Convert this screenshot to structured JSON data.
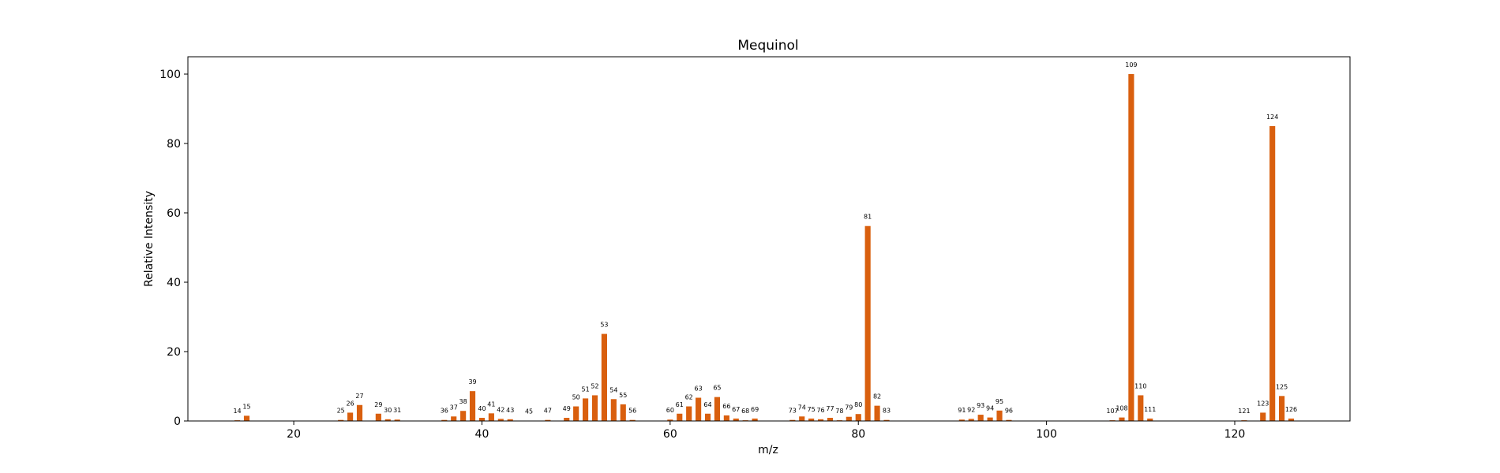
{
  "colors": {
    "bar": "#D95F0E",
    "axis": "#000000",
    "background": "#FFFFFF"
  },
  "chart_data": {
    "type": "bar",
    "title": "Mequinol",
    "xlabel": "m/z",
    "ylabel": "Relative Intensity",
    "xlim": [
      8.75,
      132.25
    ],
    "ylim": [
      0,
      105
    ],
    "xticks": [
      20,
      40,
      60,
      80,
      100,
      120
    ],
    "yticks": [
      0,
      20,
      40,
      60,
      80,
      100
    ],
    "grid": false,
    "peaks": [
      {
        "mz": 14,
        "intensity": 0.2
      },
      {
        "mz": 15,
        "intensity": 1.5
      },
      {
        "mz": 25,
        "intensity": 0.3
      },
      {
        "mz": 26,
        "intensity": 2.4
      },
      {
        "mz": 27,
        "intensity": 4.6
      },
      {
        "mz": 29,
        "intensity": 2.1
      },
      {
        "mz": 30,
        "intensity": 0.5
      },
      {
        "mz": 31,
        "intensity": 0.4
      },
      {
        "mz": 36,
        "intensity": 0.3
      },
      {
        "mz": 37,
        "intensity": 1.3
      },
      {
        "mz": 38,
        "intensity": 2.9
      },
      {
        "mz": 39,
        "intensity": 8.6
      },
      {
        "mz": 40,
        "intensity": 0.9
      },
      {
        "mz": 41,
        "intensity": 2.2
      },
      {
        "mz": 42,
        "intensity": 0.6
      },
      {
        "mz": 43,
        "intensity": 0.5
      },
      {
        "mz": 45,
        "intensity": 0.1
      },
      {
        "mz": 47,
        "intensity": 0.3
      },
      {
        "mz": 49,
        "intensity": 0.9
      },
      {
        "mz": 50,
        "intensity": 4.2
      },
      {
        "mz": 51,
        "intensity": 6.5
      },
      {
        "mz": 52,
        "intensity": 7.4
      },
      {
        "mz": 53,
        "intensity": 25.1
      },
      {
        "mz": 54,
        "intensity": 6.3
      },
      {
        "mz": 55,
        "intensity": 4.8
      },
      {
        "mz": 56,
        "intensity": 0.3
      },
      {
        "mz": 60,
        "intensity": 0.4
      },
      {
        "mz": 61,
        "intensity": 2.1
      },
      {
        "mz": 62,
        "intensity": 4.2
      },
      {
        "mz": 63,
        "intensity": 6.7
      },
      {
        "mz": 64,
        "intensity": 2.1
      },
      {
        "mz": 65,
        "intensity": 6.9
      },
      {
        "mz": 66,
        "intensity": 1.6
      },
      {
        "mz": 67,
        "intensity": 0.7
      },
      {
        "mz": 68,
        "intensity": 0.2
      },
      {
        "mz": 69,
        "intensity": 0.7
      },
      {
        "mz": 73,
        "intensity": 0.3
      },
      {
        "mz": 74,
        "intensity": 1.3
      },
      {
        "mz": 75,
        "intensity": 0.7
      },
      {
        "mz": 76,
        "intensity": 0.5
      },
      {
        "mz": 77,
        "intensity": 0.9
      },
      {
        "mz": 78,
        "intensity": 0.2
      },
      {
        "mz": 79,
        "intensity": 1.2
      },
      {
        "mz": 80,
        "intensity": 2.0
      },
      {
        "mz": 81,
        "intensity": 56.2
      },
      {
        "mz": 82,
        "intensity": 4.4
      },
      {
        "mz": 83,
        "intensity": 0.3
      },
      {
        "mz": 91,
        "intensity": 0.4
      },
      {
        "mz": 92,
        "intensity": 0.6
      },
      {
        "mz": 93,
        "intensity": 1.8
      },
      {
        "mz": 94,
        "intensity": 1.0
      },
      {
        "mz": 95,
        "intensity": 3.0
      },
      {
        "mz": 96,
        "intensity": 0.3
      },
      {
        "mz": 107,
        "intensity": 0.2
      },
      {
        "mz": 108,
        "intensity": 1.0
      },
      {
        "mz": 109,
        "intensity": 100.0
      },
      {
        "mz": 110,
        "intensity": 7.4
      },
      {
        "mz": 111,
        "intensity": 0.7
      },
      {
        "mz": 121,
        "intensity": 0.2
      },
      {
        "mz": 123,
        "intensity": 2.4
      },
      {
        "mz": 124,
        "intensity": 85.0
      },
      {
        "mz": 125,
        "intensity": 7.2
      },
      {
        "mz": 126,
        "intensity": 0.7
      }
    ]
  }
}
